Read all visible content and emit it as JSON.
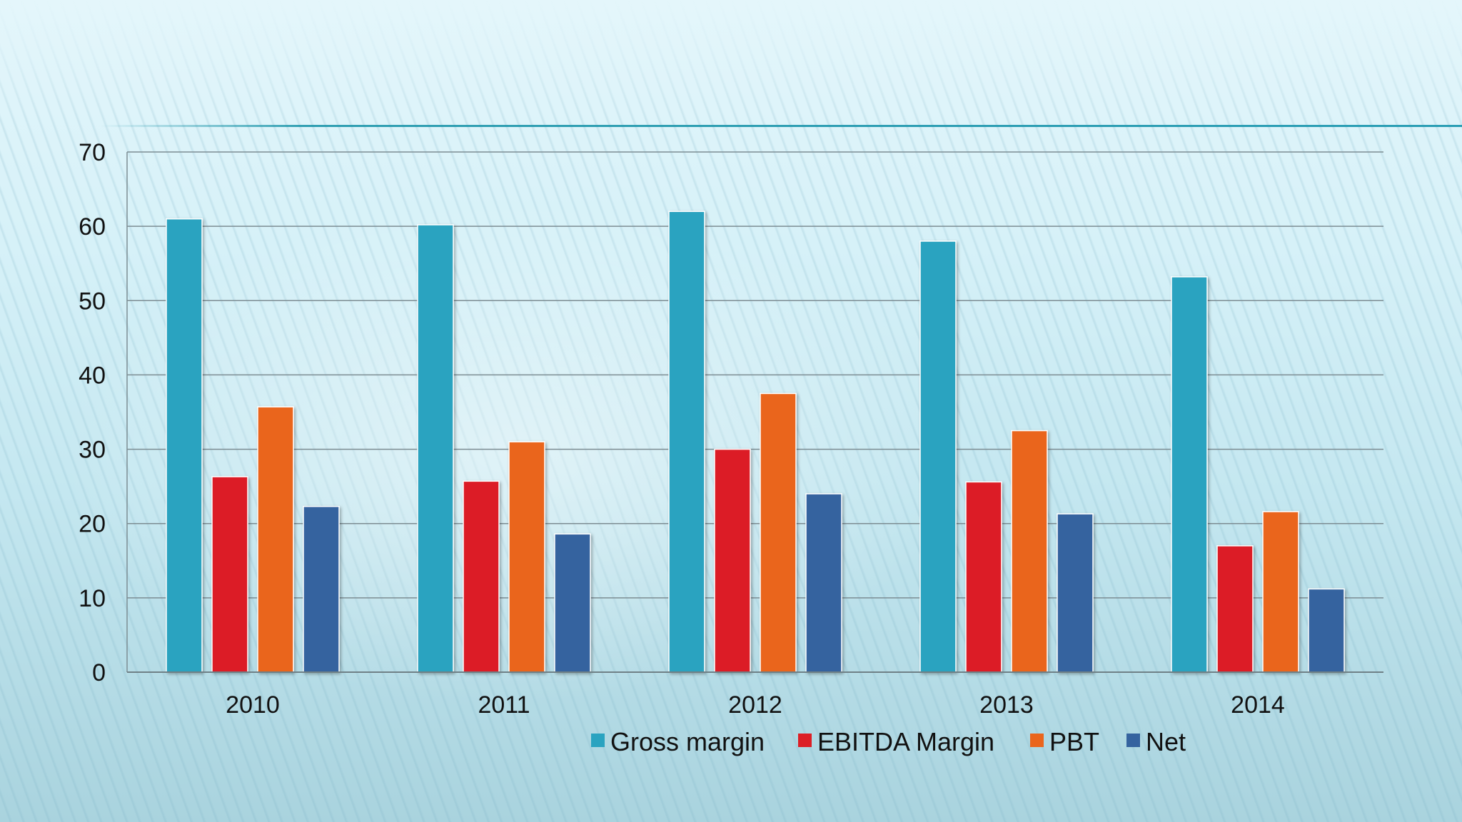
{
  "chart_data": {
    "type": "bar",
    "categories": [
      "2010",
      "2011",
      "2012",
      "2013",
      "2014"
    ],
    "series": [
      {
        "name": "Gross margin",
        "values": [
          61,
          60.2,
          62,
          58,
          53.2
        ],
        "color": "#2aa3c0"
      },
      {
        "name": "EBITDA Margin",
        "values": [
          26.3,
          25.7,
          30,
          25.6,
          17
        ],
        "color": "#dc1f26"
      },
      {
        "name": "PBT",
        "values": [
          35.7,
          31,
          37.5,
          32.5,
          21.6
        ],
        "color": "#ea651c"
      },
      {
        "name": "Net",
        "values": [
          22.3,
          18.6,
          24,
          21.3,
          11.2
        ],
        "color": "#35639f"
      }
    ],
    "ylim": [
      0,
      70
    ],
    "yticks": [
      0,
      10,
      20,
      30,
      40,
      50,
      60,
      70
    ],
    "grid": true,
    "legend_position": "bottom"
  }
}
